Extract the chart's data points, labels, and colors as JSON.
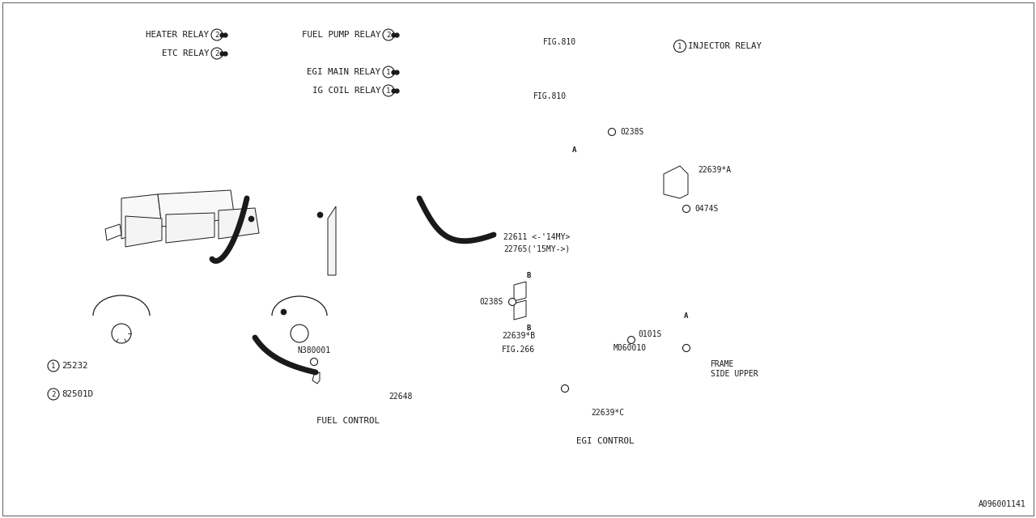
{
  "bg_color": "#ffffff",
  "lc": "#1a1a1a",
  "fig_id": "A096001141",
  "fs": 7.8,
  "fss": 7.0,
  "labels": {
    "heater_relay": "HEATER RELAY",
    "etc_relay": "ETC RELAY",
    "fuel_pump_relay": "FUEL PUMP RELAY",
    "egi_main_relay": "EGI MAIN RELAY",
    "ig_coil_relay": "IG COIL RELAY",
    "injector_relay": "INJECTOR RELAY",
    "fuel_control": "FUEL CONTROL",
    "egi_control": "EGI CONTROL",
    "n380001": "N380001",
    "fig810_1": "FIG.810",
    "fig810_2": "FIG.810",
    "fig266": "FIG.266",
    "p22611": "22611 <-'14MY>",
    "p22765": "22765('15MY->)",
    "p22648": "22648",
    "p22639a": "22639*A",
    "p22639b": "22639*B",
    "p22639c": "22639*C",
    "p0238s_1": "0238S",
    "p0238s_2": "0238S",
    "p0474s": "0474S",
    "p0101s": "0101S",
    "pm060010": "M060010",
    "p25232": "25232",
    "p82501d": "82501D",
    "frame_side1": "FRAME",
    "frame_side2": "SIDE UPPER"
  }
}
